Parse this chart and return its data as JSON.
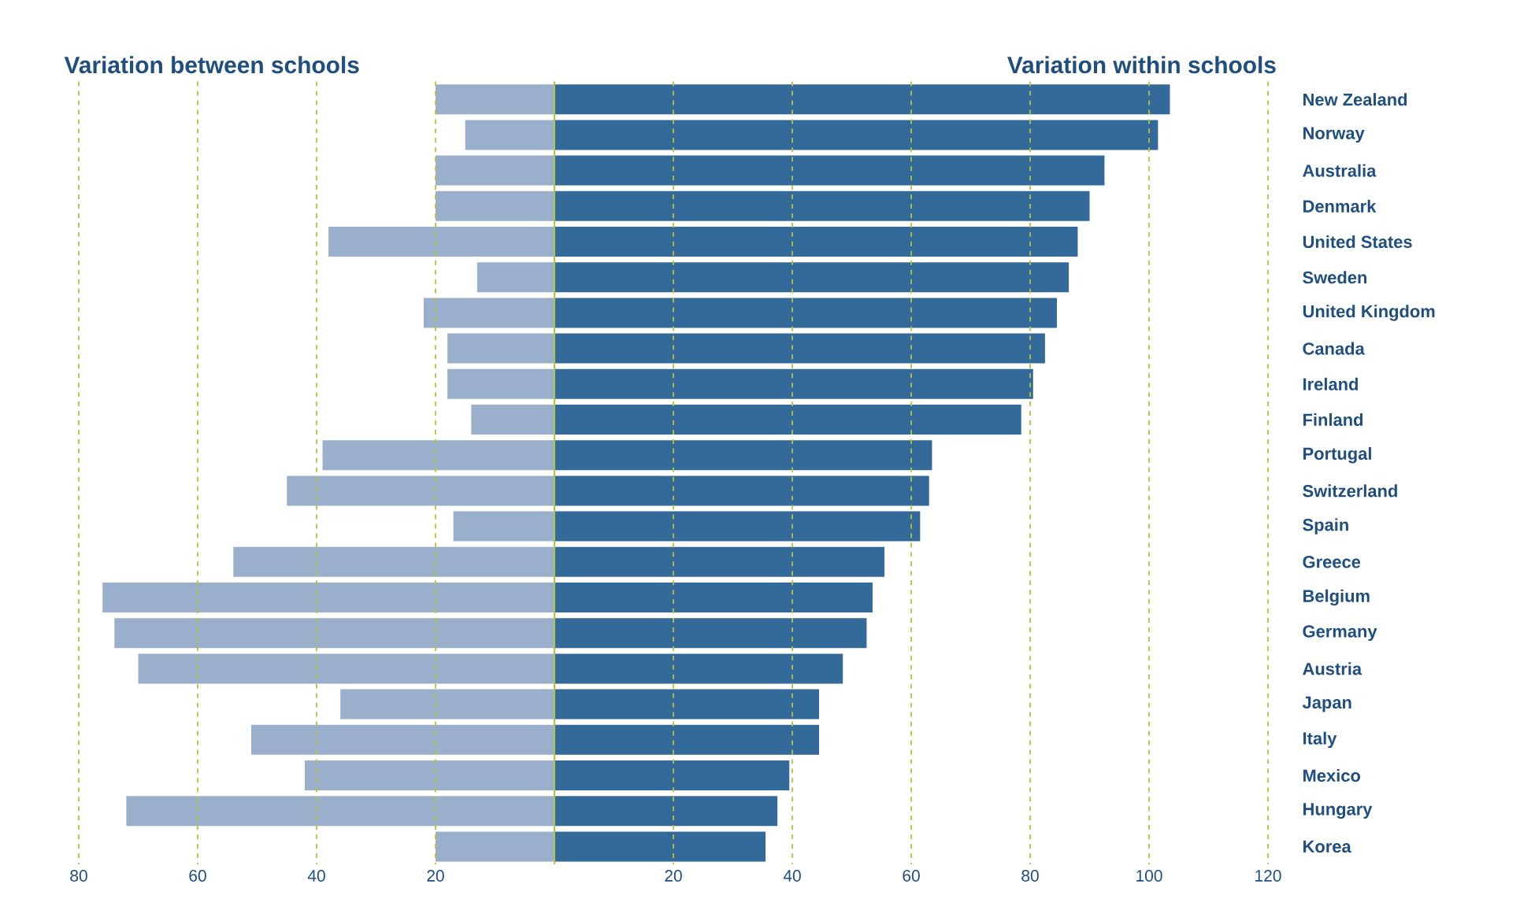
{
  "chart_data": {
    "type": "bar",
    "orientation": "horizontal",
    "stacked": true,
    "categories": [
      "New Zealand",
      "Norway",
      "Australia",
      "Denmark",
      "United States",
      "Sweden",
      "United Kingdom",
      "Canada",
      "Ireland",
      "Finland",
      "Portugal",
      "Switzerland",
      "Spain",
      "Greece",
      "Belgium",
      "Germany",
      "Austria",
      "Japan",
      "Italy",
      "Mexico",
      "Hungary",
      "Korea"
    ],
    "series": [
      {
        "color": "#9aafcc",
        "values": [
          -20,
          -15,
          -20,
          -20,
          -38,
          -13,
          -22,
          -18,
          -18,
          -14,
          -39,
          -45,
          -17,
          -54,
          -76,
          -74,
          -70,
          -36,
          -51,
          -42,
          -72,
          -20
        ]
      },
      {
        "color": "#336a9a",
        "values": [
          103.5,
          101.5,
          92.5,
          90,
          88,
          86.5,
          84.5,
          82.5,
          80.5,
          78.5,
          63.5,
          63,
          61.5,
          55.5,
          53.5,
          52.5,
          48.5,
          44.5,
          44.5,
          39.5,
          37.5,
          35.5
        ]
      }
    ],
    "xlim": [
      -80,
      120
    ],
    "annotations": [
      "Variation between schools",
      "Variation within schools"
    ],
    "ref_lines": [
      {
        "axis": "x",
        "value": 0,
        "color": "#b4c43c"
      }
    ],
    "xticks": [
      {
        "value": -80,
        "label": "80"
      },
      {
        "value": -60,
        "label": "60"
      },
      {
        "value": -40,
        "label": "40"
      },
      {
        "value": -20,
        "label": "20"
      },
      20,
      40,
      60,
      80,
      100,
      120
    ],
    "grid": "x"
  }
}
